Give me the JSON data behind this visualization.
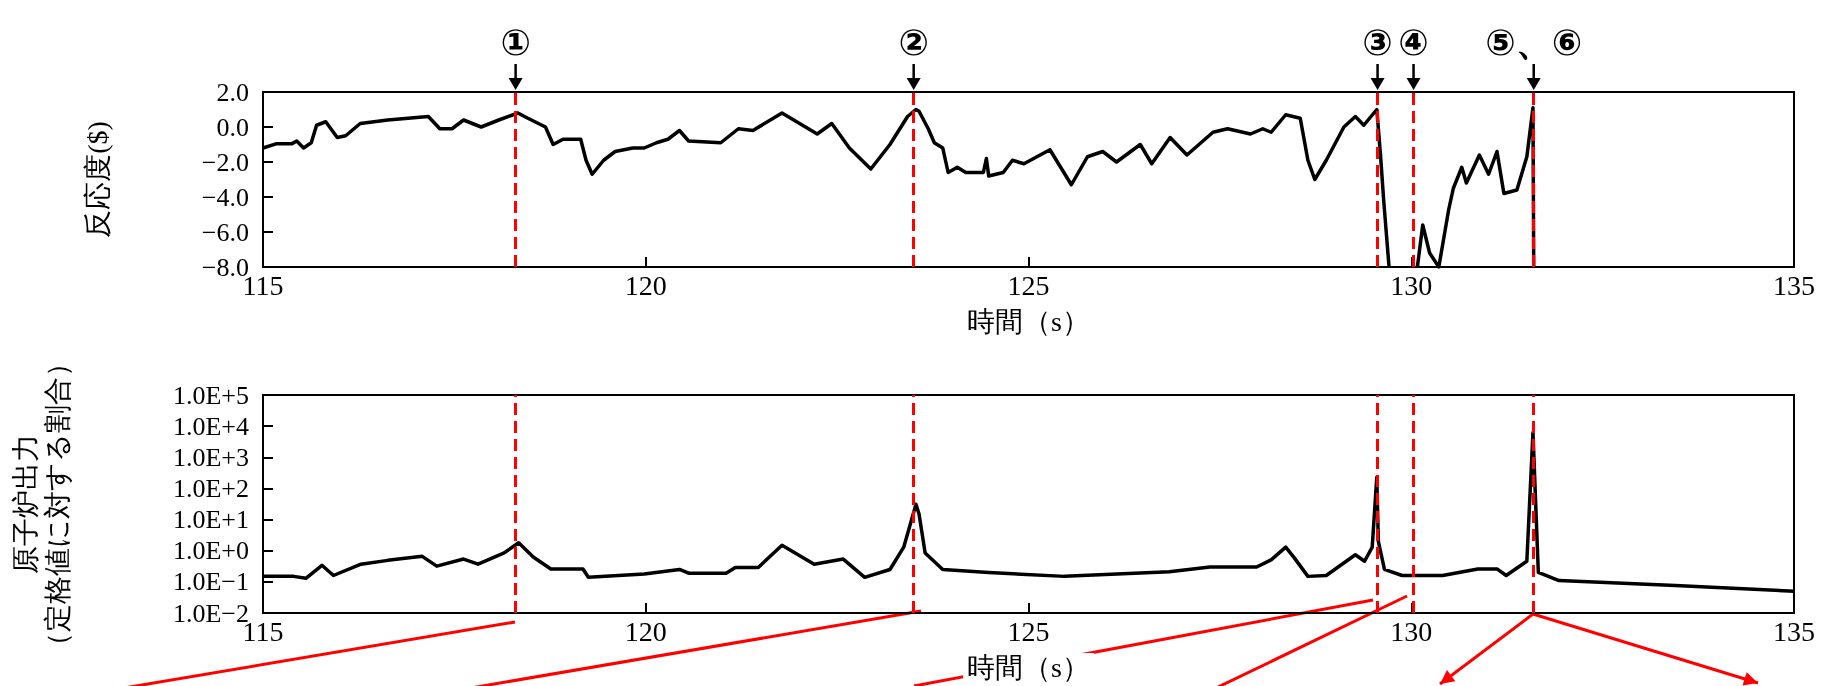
{
  "chart_data": [
    {
      "type": "line",
      "xlabel": "時間（s）",
      "ylabel": "反応度($)",
      "xlim": [
        115,
        135
      ],
      "xticks": [
        115,
        120,
        125,
        130,
        135
      ],
      "ylim": [
        -8,
        2
      ],
      "yticks": [
        {
          "value": 2,
          "label": "2.0"
        },
        {
          "value": 0,
          "label": "0.0"
        },
        {
          "value": -2,
          "label": "−2.0"
        },
        {
          "value": -4,
          "label": "−4.0"
        },
        {
          "value": -6,
          "label": "−6.0"
        },
        {
          "value": -8,
          "label": "−8.0"
        }
      ],
      "marker": "none",
      "line_style": "solid",
      "x": [
        115,
        115.18,
        115.38,
        115.44,
        115.53,
        115.63,
        115.7,
        115.82,
        115.97,
        116.08,
        116.27,
        116.63,
        117.16,
        117.31,
        117.47,
        117.62,
        117.85,
        118.08,
        118.33,
        118.46,
        118.69,
        118.79,
        118.92,
        119.15,
        119.22,
        119.3,
        119.45,
        119.6,
        119.83,
        119.98,
        120.14,
        120.29,
        120.44,
        120.56,
        120.98,
        121.21,
        121.4,
        121.78,
        122.24,
        122.43,
        122.66,
        122.94,
        123.19,
        123.42,
        123.53,
        123.57,
        123.69,
        123.77,
        123.88,
        123.95,
        124.07,
        124.18,
        124.41,
        124.45,
        124.48,
        124.67,
        124.79,
        124.94,
        125.28,
        125.56,
        125.77,
        125.97,
        126.15,
        126.46,
        126.61,
        126.85,
        127.07,
        127.41,
        127.6,
        127.9,
        128.06,
        128.17,
        128.36,
        128.55,
        128.65,
        128.74,
        128.89,
        129.12,
        129.27,
        129.38,
        129.55,
        129.6,
        129.64,
        129.71,
        129.9,
        130.08,
        130.15,
        130.24,
        130.36,
        130.49,
        130.55,
        130.66,
        130.72,
        130.89,
        131.01,
        131.12,
        131.21,
        131.38,
        131.51,
        131.59,
        131.6
      ],
      "series": [
        {
          "color": "#000000",
          "values": [
            -1.2,
            -0.95,
            -0.95,
            -0.8,
            -1.2,
            -0.9,
            0.1,
            0.3,
            -0.6,
            -0.5,
            0.2,
            0.4,
            0.6,
            -0.1,
            -0.1,
            0.4,
            0,
            0.4,
            0.8,
            0.5,
            0,
            -1,
            -0.7,
            -0.7,
            -1.9,
            -2.7,
            -1.9,
            -1.4,
            -1.2,
            -1.2,
            -0.9,
            -0.7,
            -0.2,
            -0.8,
            -0.9,
            -0.1,
            -0.2,
            0.8,
            -0.4,
            0.2,
            -1.2,
            -2.4,
            -1,
            0.6,
            1,
            0.9,
            -0.1,
            -0.9,
            -1.2,
            -2.6,
            -2.3,
            -2.6,
            -2.6,
            -1.8,
            -2.8,
            -2.6,
            -1.9,
            -2.1,
            -1.3,
            -3.3,
            -1.7,
            -1.4,
            -2,
            -1,
            -2.1,
            -0.6,
            -1.6,
            -0.3,
            -0.1,
            -0.4,
            -0.1,
            -0.3,
            0.7,
            0.5,
            -1.9,
            -3,
            -1.9,
            0,
            0.6,
            0.1,
            1,
            -1.7,
            -4.2,
            -8,
            null,
            -8,
            -5.6,
            -7.2,
            -8,
            -4.7,
            -3.5,
            -2.3,
            -3.2,
            -1.6,
            -2.7,
            -1.4,
            -3.8,
            -3.6,
            -1.7,
            1.1,
            -8
          ]
        }
      ],
      "ref_lines": [
        {
          "axis": "x",
          "value": 118.3,
          "label": "①",
          "color": "#ff0000",
          "line_style": "dashed"
        },
        {
          "axis": "x",
          "value": 123.5,
          "label": "②",
          "color": "#ff0000",
          "line_style": "dashed"
        },
        {
          "axis": "x",
          "value": 129.56,
          "label": "③",
          "color": "#ff0000",
          "line_style": "dashed"
        },
        {
          "axis": "x",
          "value": 130.03,
          "label": "④",
          "color": "#ff0000",
          "line_style": "dashed"
        },
        {
          "axis": "x",
          "value": 131.6,
          "label": "⑤、⑥",
          "color": "#ff0000",
          "line_style": "dashed"
        }
      ]
    },
    {
      "type": "line",
      "xlabel": "時間（s）",
      "ylabel": "原子炉出力（定格値に対する割合）",
      "log": true,
      "xlim": [
        115,
        135
      ],
      "xticks": [
        115,
        120,
        125,
        130,
        135
      ],
      "ylim": [
        0.01,
        100000
      ],
      "yticks": [
        {
          "value": 0.01,
          "label": "1.0E−2"
        },
        {
          "value": 0.1,
          "label": "1.0E−1"
        },
        {
          "value": 1,
          "label": "1.0E+0"
        },
        {
          "value": 10,
          "label": "1.0E+1"
        },
        {
          "value": 100,
          "label": "1.0E+2"
        },
        {
          "value": 1000,
          "label": "1.0E+3"
        },
        {
          "value": 10000,
          "label": "1.0E+4"
        },
        {
          "value": 100000,
          "label": "1.0E+5"
        }
      ],
      "marker": "none",
      "line_style": "solid",
      "x": [
        115,
        115.4,
        115.56,
        115.77,
        115.92,
        116.28,
        116.63,
        117.08,
        117.27,
        117.62,
        117.81,
        118.15,
        118.34,
        118.53,
        118.76,
        119.18,
        119.25,
        119.98,
        120.44,
        120.56,
        121.05,
        121.17,
        121.47,
        121.78,
        122.2,
        122.58,
        122.86,
        123.19,
        123.37,
        123.53,
        123.57,
        123.65,
        123.88,
        124.48,
        125.47,
        126.84,
        127.37,
        127.98,
        128.17,
        128.36,
        128.47,
        128.65,
        128.89,
        129.27,
        129.39,
        129.49,
        129.55,
        129.57,
        129.65,
        129.88,
        130.41,
        130.87,
        131.12,
        131.24,
        131.51,
        131.59,
        131.66,
        131.93,
        133.45,
        135
      ],
      "series": [
        {
          "color": "#000000",
          "values": [
            0.15,
            0.15,
            0.13,
            0.34,
            0.16,
            0.37,
            0.49,
            0.66,
            0.32,
            0.54,
            0.37,
            0.85,
            1.8,
            0.63,
            0.26,
            0.26,
            0.14,
            0.18,
            0.25,
            0.19,
            0.19,
            0.29,
            0.29,
            1.5,
            0.37,
            0.54,
            0.14,
            0.25,
            1.3,
            31,
            15,
            0.85,
            0.25,
            0.2,
            0.15,
            0.21,
            0.3,
            0.3,
            0.51,
            1.3,
            0.6,
            0.15,
            0.16,
            0.74,
            0.46,
            1.3,
            230,
            2,
            0.25,
            0.16,
            0.16,
            0.26,
            0.26,
            0.16,
            0.46,
            6300,
            0.2,
            0.11,
            0.076,
            0.05
          ]
        }
      ],
      "ref_lines": [
        {
          "axis": "x",
          "value": 118.3,
          "color": "#ff0000",
          "line_style": "dashed"
        },
        {
          "axis": "x",
          "value": 123.5,
          "color": "#ff0000",
          "line_style": "dashed"
        },
        {
          "axis": "x",
          "value": 129.56,
          "color": "#ff0000",
          "line_style": "dashed"
        },
        {
          "axis": "x",
          "value": 130.03,
          "color": "#ff0000",
          "line_style": "dashed"
        },
        {
          "axis": "x",
          "value": 131.6,
          "color": "#ff0000",
          "line_style": "dashed"
        }
      ]
    }
  ]
}
